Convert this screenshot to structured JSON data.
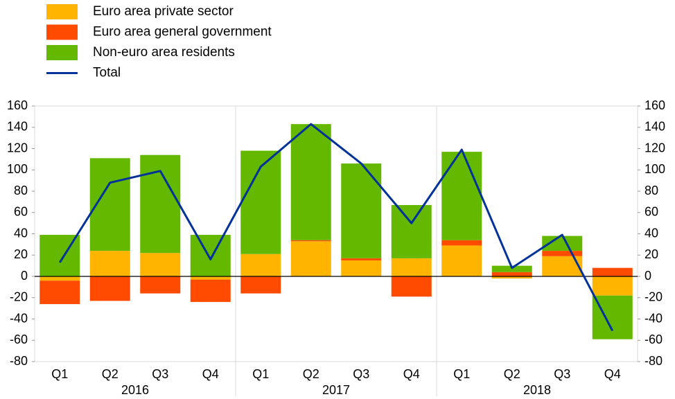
{
  "chart_data": {
    "type": "bar",
    "categories": [
      "Q1",
      "Q2",
      "Q3",
      "Q4",
      "Q1",
      "Q2",
      "Q3",
      "Q4",
      "Q1",
      "Q2",
      "Q3",
      "Q4"
    ],
    "x_group_labels": [
      "2016",
      "2017",
      "2018"
    ],
    "stacked": true,
    "series": [
      {
        "name": "Euro area private sector",
        "color": "#ffb400",
        "values": [
          -4,
          24,
          22,
          -3,
          21,
          33,
          15,
          17,
          29,
          -2,
          19,
          -18
        ]
      },
      {
        "name": "Euro area general government",
        "color": "#ff4b00",
        "values": [
          -22,
          -23,
          -16,
          -21,
          -16,
          1,
          2,
          -19,
          5,
          4,
          5,
          8
        ]
      },
      {
        "name": "Non-euro area residents",
        "color": "#65b800",
        "values": [
          39,
          87,
          92,
          39,
          97,
          109,
          89,
          50,
          83,
          6,
          14,
          -41
        ]
      },
      {
        "name": "Total",
        "color": "#003299",
        "type": "line",
        "values": [
          13,
          88,
          99,
          16,
          103,
          143,
          106,
          50,
          119,
          8,
          39,
          -51
        ]
      }
    ],
    "ylim": [
      -80,
      160
    ],
    "yticks": [
      -80,
      -60,
      -40,
      -20,
      0,
      20,
      40,
      60,
      80,
      100,
      120,
      140,
      160
    ],
    "y2lim": [
      -80,
      160
    ],
    "y2ticks": [
      -80,
      -60,
      -40,
      -20,
      0,
      20,
      40,
      60,
      80,
      100,
      120,
      140,
      160
    ],
    "grid": false,
    "legend": "top-left"
  }
}
